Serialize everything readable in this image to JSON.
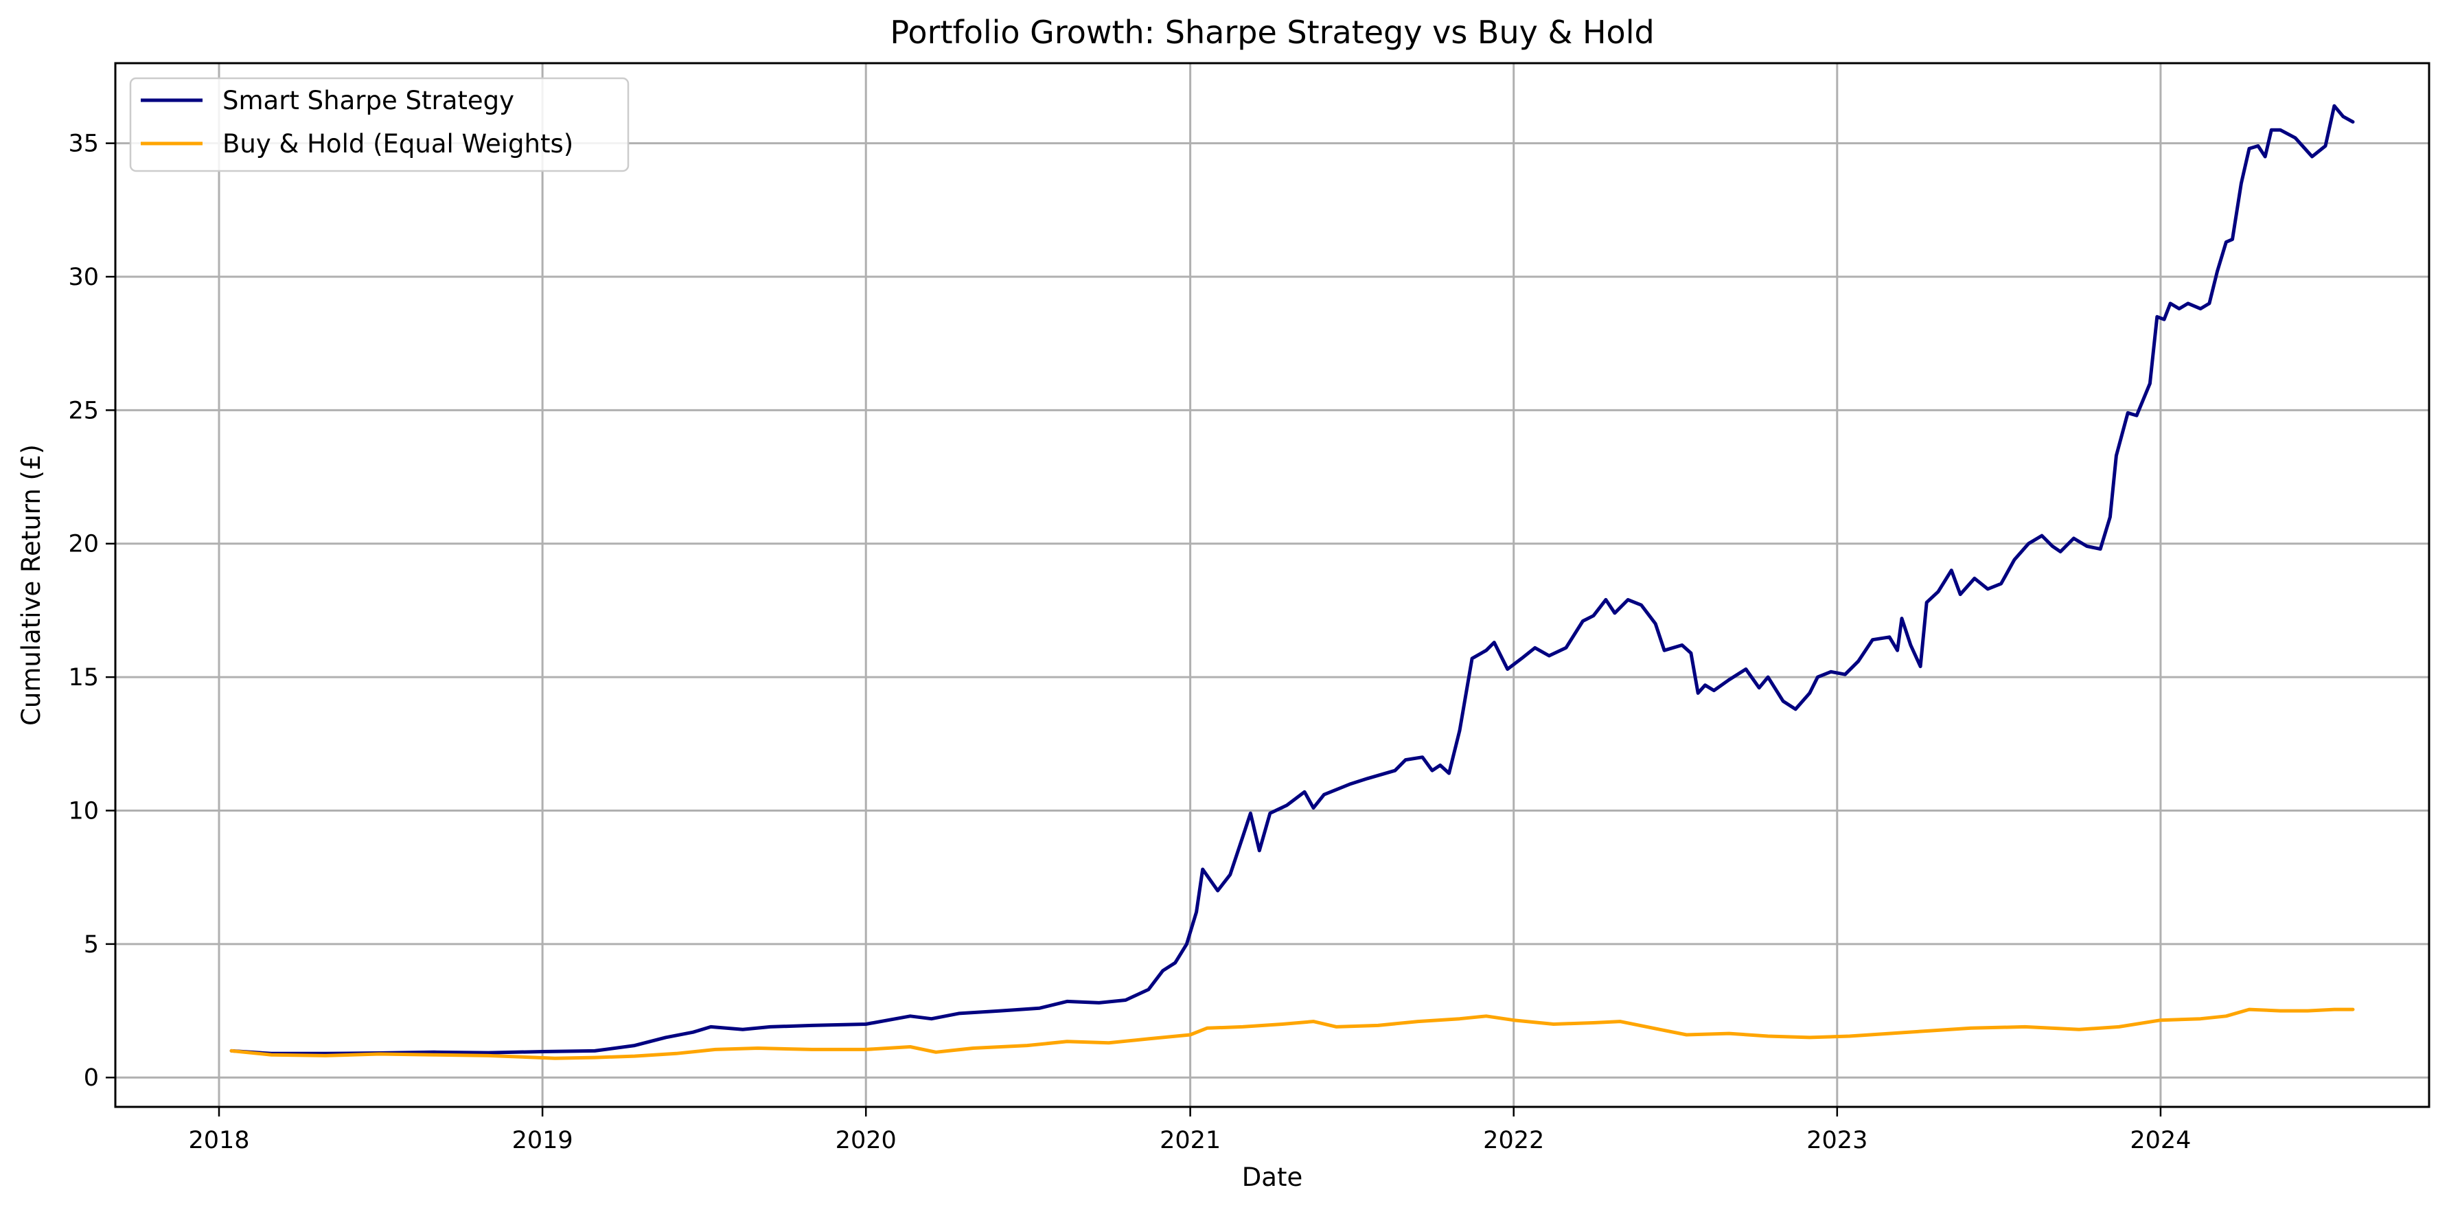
{
  "chart_data": {
    "type": "line",
    "title": "Portfolio Growth: Sharpe Strategy vs Buy & Hold",
    "xlabel": "Date",
    "ylabel": "Cumulative Return (£)",
    "xlim": [
      "2017-09-06",
      "2024-10-30"
    ],
    "ylim": [
      -1.1,
      38.0
    ],
    "grid": true,
    "legend": "top-left",
    "x_ticks": [
      "2018",
      "2019",
      "2020",
      "2021",
      "2022",
      "2023",
      "2024"
    ],
    "y_ticks": [
      0,
      5,
      10,
      15,
      20,
      25,
      30,
      35
    ],
    "series": [
      {
        "name": "Smart Sharpe Strategy",
        "color": "#000080",
        "points": [
          [
            "2018-01-15",
            1.0
          ],
          [
            "2018-03-01",
            0.9
          ],
          [
            "2018-05-01",
            0.9
          ],
          [
            "2018-07-01",
            0.92
          ],
          [
            "2018-09-01",
            0.95
          ],
          [
            "2018-11-01",
            0.93
          ],
          [
            "2019-01-01",
            0.97
          ],
          [
            "2019-03-01",
            1.0
          ],
          [
            "2019-04-15",
            1.2
          ],
          [
            "2019-05-20",
            1.5
          ],
          [
            "2019-06-20",
            1.7
          ],
          [
            "2019-07-10",
            1.9
          ],
          [
            "2019-08-15",
            1.8
          ],
          [
            "2019-09-15",
            1.9
          ],
          [
            "2019-11-01",
            1.95
          ],
          [
            "2020-01-01",
            2.0
          ],
          [
            "2020-02-20",
            2.3
          ],
          [
            "2020-03-15",
            2.2
          ],
          [
            "2020-04-15",
            2.4
          ],
          [
            "2020-06-01",
            2.5
          ],
          [
            "2020-07-15",
            2.6
          ],
          [
            "2020-08-15",
            2.85
          ],
          [
            "2020-09-20",
            2.8
          ],
          [
            "2020-10-20",
            2.9
          ],
          [
            "2020-11-15",
            3.3
          ],
          [
            "2020-12-01",
            4.0
          ],
          [
            "2020-12-15",
            4.3
          ],
          [
            "2020-12-28",
            5.0
          ],
          [
            "2021-01-08",
            6.2
          ],
          [
            "2021-01-15",
            7.8
          ],
          [
            "2021-02-01",
            7.0
          ],
          [
            "2021-02-15",
            7.6
          ],
          [
            "2021-03-01",
            9.0
          ],
          [
            "2021-03-10",
            9.9
          ],
          [
            "2021-03-20",
            8.5
          ],
          [
            "2021-04-01",
            9.9
          ],
          [
            "2021-04-20",
            10.2
          ],
          [
            "2021-05-10",
            10.7
          ],
          [
            "2021-05-20",
            10.1
          ],
          [
            "2021-06-01",
            10.6
          ],
          [
            "2021-07-01",
            11.0
          ],
          [
            "2021-07-20",
            11.2
          ],
          [
            "2021-08-20",
            11.5
          ],
          [
            "2021-09-01",
            11.9
          ],
          [
            "2021-09-20",
            12.0
          ],
          [
            "2021-10-01",
            11.5
          ],
          [
            "2021-10-10",
            11.7
          ],
          [
            "2021-10-20",
            11.4
          ],
          [
            "2021-11-01",
            13.0
          ],
          [
            "2021-11-15",
            15.7
          ],
          [
            "2021-12-01",
            16.0
          ],
          [
            "2021-12-10",
            16.3
          ],
          [
            "2021-12-25",
            15.3
          ],
          [
            "2022-01-10",
            15.7
          ],
          [
            "2022-01-25",
            16.1
          ],
          [
            "2022-02-10",
            15.8
          ],
          [
            "2022-03-01",
            16.1
          ],
          [
            "2022-03-20",
            17.1
          ],
          [
            "2022-04-01",
            17.3
          ],
          [
            "2022-04-15",
            17.9
          ],
          [
            "2022-04-25",
            17.4
          ],
          [
            "2022-05-10",
            17.9
          ],
          [
            "2022-05-25",
            17.7
          ],
          [
            "2022-06-10",
            17.0
          ],
          [
            "2022-06-20",
            16.0
          ],
          [
            "2022-07-10",
            16.2
          ],
          [
            "2022-07-20",
            15.9
          ],
          [
            "2022-07-28",
            14.4
          ],
          [
            "2022-08-05",
            14.7
          ],
          [
            "2022-08-15",
            14.5
          ],
          [
            "2022-09-01",
            14.9
          ],
          [
            "2022-09-20",
            15.3
          ],
          [
            "2022-10-05",
            14.6
          ],
          [
            "2022-10-15",
            15.0
          ],
          [
            "2022-11-01",
            14.1
          ],
          [
            "2022-11-15",
            13.8
          ],
          [
            "2022-12-01",
            14.4
          ],
          [
            "2022-12-10",
            15.0
          ],
          [
            "2022-12-25",
            15.2
          ],
          [
            "2023-01-10",
            15.1
          ],
          [
            "2023-01-25",
            15.6
          ],
          [
            "2023-02-10",
            16.4
          ],
          [
            "2023-03-01",
            16.5
          ],
          [
            "2023-03-10",
            16.0
          ],
          [
            "2023-03-15",
            17.2
          ],
          [
            "2023-03-25",
            16.2
          ],
          [
            "2023-04-05",
            15.4
          ],
          [
            "2023-04-12",
            17.8
          ],
          [
            "2023-04-25",
            18.2
          ],
          [
            "2023-05-10",
            19.0
          ],
          [
            "2023-05-20",
            18.1
          ],
          [
            "2023-06-05",
            18.7
          ],
          [
            "2023-06-20",
            18.3
          ],
          [
            "2023-07-05",
            18.5
          ],
          [
            "2023-07-20",
            19.4
          ],
          [
            "2023-08-05",
            20.0
          ],
          [
            "2023-08-20",
            20.3
          ],
          [
            "2023-09-01",
            19.9
          ],
          [
            "2023-09-10",
            19.7
          ],
          [
            "2023-09-25",
            20.2
          ],
          [
            "2023-10-10",
            19.9
          ],
          [
            "2023-10-25",
            19.8
          ],
          [
            "2023-11-05",
            21.0
          ],
          [
            "2023-11-12",
            23.3
          ],
          [
            "2023-11-25",
            24.9
          ],
          [
            "2023-12-05",
            24.8
          ],
          [
            "2023-12-20",
            26.0
          ],
          [
            "2023-12-28",
            28.5
          ],
          [
            "2024-01-05",
            28.4
          ],
          [
            "2024-01-12",
            29.0
          ],
          [
            "2024-01-22",
            28.8
          ],
          [
            "2024-02-01",
            29.0
          ],
          [
            "2024-02-15",
            28.8
          ],
          [
            "2024-02-25",
            29.0
          ],
          [
            "2024-03-05",
            30.2
          ],
          [
            "2024-03-15",
            31.3
          ],
          [
            "2024-03-22",
            31.4
          ],
          [
            "2024-04-01",
            33.5
          ],
          [
            "2024-04-10",
            34.8
          ],
          [
            "2024-04-20",
            34.9
          ],
          [
            "2024-04-28",
            34.5
          ],
          [
            "2024-05-05",
            35.5
          ],
          [
            "2024-05-15",
            35.5
          ],
          [
            "2024-06-01",
            35.2
          ],
          [
            "2024-06-20",
            34.5
          ],
          [
            "2024-07-05",
            34.9
          ],
          [
            "2024-07-15",
            36.4
          ],
          [
            "2024-07-25",
            36.0
          ],
          [
            "2024-08-05",
            35.8
          ]
        ]
      },
      {
        "name": "Buy & Hold (Equal Weights)",
        "color": "#ffa500",
        "points": [
          [
            "2018-01-15",
            1.0
          ],
          [
            "2018-03-01",
            0.85
          ],
          [
            "2018-05-01",
            0.82
          ],
          [
            "2018-07-01",
            0.88
          ],
          [
            "2018-09-01",
            0.85
          ],
          [
            "2018-11-01",
            0.82
          ],
          [
            "2018-12-25",
            0.75
          ],
          [
            "2019-01-15",
            0.72
          ],
          [
            "2019-03-01",
            0.75
          ],
          [
            "2019-04-15",
            0.8
          ],
          [
            "2019-06-01",
            0.9
          ],
          [
            "2019-07-15",
            1.05
          ],
          [
            "2019-09-01",
            1.1
          ],
          [
            "2019-11-01",
            1.05
          ],
          [
            "2020-01-01",
            1.05
          ],
          [
            "2020-02-20",
            1.15
          ],
          [
            "2020-03-20",
            0.95
          ],
          [
            "2020-05-01",
            1.1
          ],
          [
            "2020-07-01",
            1.2
          ],
          [
            "2020-08-15",
            1.35
          ],
          [
            "2020-10-01",
            1.3
          ],
          [
            "2020-11-15",
            1.45
          ],
          [
            "2021-01-01",
            1.6
          ],
          [
            "2021-01-20",
            1.85
          ],
          [
            "2021-03-01",
            1.9
          ],
          [
            "2021-04-15",
            2.0
          ],
          [
            "2021-05-20",
            2.1
          ],
          [
            "2021-06-15",
            1.9
          ],
          [
            "2021-08-01",
            1.95
          ],
          [
            "2021-09-15",
            2.1
          ],
          [
            "2021-11-01",
            2.2
          ],
          [
            "2021-12-01",
            2.3
          ],
          [
            "2022-01-01",
            2.15
          ],
          [
            "2022-02-15",
            2.0
          ],
          [
            "2022-04-01",
            2.05
          ],
          [
            "2022-05-01",
            2.1
          ],
          [
            "2022-06-15",
            1.8
          ],
          [
            "2022-07-15",
            1.6
          ],
          [
            "2022-09-01",
            1.65
          ],
          [
            "2022-10-15",
            1.55
          ],
          [
            "2022-12-01",
            1.5
          ],
          [
            "2023-01-15",
            1.55
          ],
          [
            "2023-03-01",
            1.65
          ],
          [
            "2023-04-15",
            1.75
          ],
          [
            "2023-06-01",
            1.85
          ],
          [
            "2023-08-01",
            1.9
          ],
          [
            "2023-10-01",
            1.8
          ],
          [
            "2023-11-15",
            1.9
          ],
          [
            "2024-01-01",
            2.15
          ],
          [
            "2024-02-15",
            2.2
          ],
          [
            "2024-03-15",
            2.3
          ],
          [
            "2024-04-10",
            2.55
          ],
          [
            "2024-05-15",
            2.5
          ],
          [
            "2024-06-15",
            2.5
          ],
          [
            "2024-07-15",
            2.55
          ],
          [
            "2024-08-05",
            2.55
          ]
        ]
      }
    ]
  }
}
